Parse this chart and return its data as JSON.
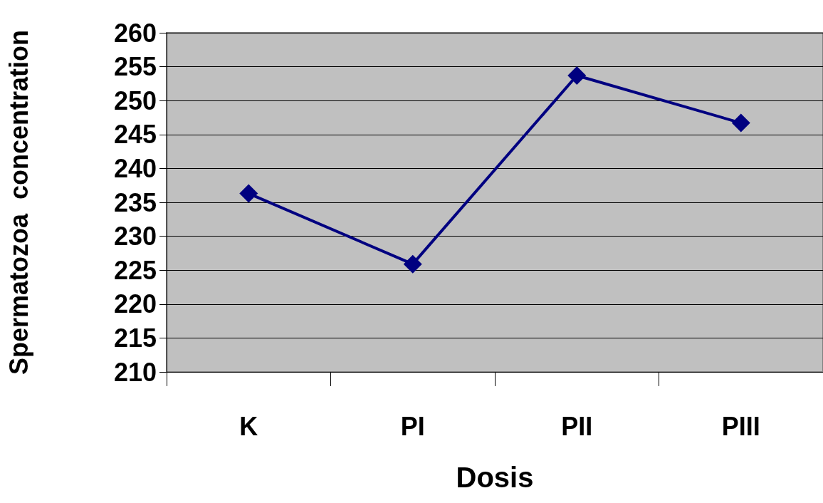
{
  "chart_data": {
    "type": "line",
    "xlabel": "Dosis",
    "ylabel": "Spermatozoa  concentration",
    "categories": [
      "K",
      "PI",
      "PII",
      "PIII"
    ],
    "series": [
      {
        "color": "#000080",
        "values": [
          236.3,
          225.9,
          253.7,
          246.7
        ]
      }
    ],
    "ylim": [
      210,
      260
    ],
    "yticks": [
      210,
      215,
      220,
      225,
      230,
      235,
      240,
      245,
      250,
      255,
      260
    ],
    "grid": "y",
    "marker": "diamond",
    "line_style": "solid"
  }
}
